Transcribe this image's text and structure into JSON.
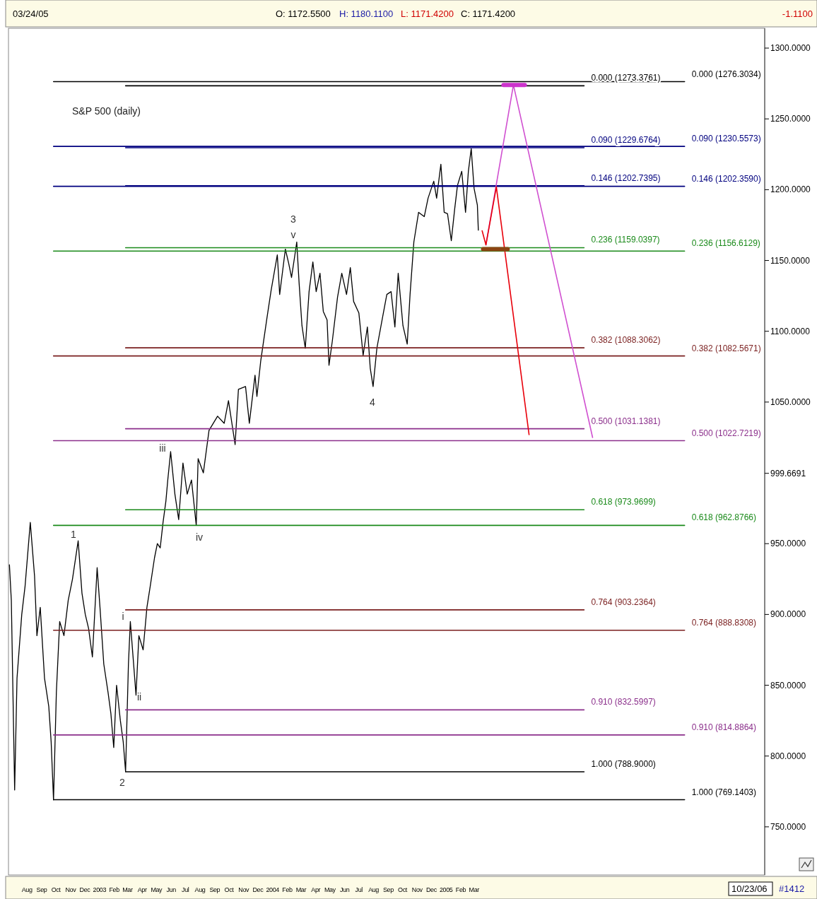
{
  "chart_data": {
    "type": "line",
    "title": "S&P 500 (daily)",
    "xlim": [
      "2002-07-07",
      "2006-11-18"
    ],
    "xticks": [
      {
        "value": "2002-08-15",
        "label": "Aug"
      },
      {
        "value": "2002-09-15",
        "label": "Sep"
      },
      {
        "value": "2002-10-15",
        "label": "Oct"
      },
      {
        "value": "2002-11-15",
        "label": "Nov"
      },
      {
        "value": "2002-12-15",
        "label": "Dec"
      },
      {
        "value": "2003-01-15",
        "label": "2003"
      },
      {
        "value": "2003-02-15",
        "label": "Feb"
      },
      {
        "value": "2003-03-15",
        "label": "Mar"
      },
      {
        "value": "2003-04-15",
        "label": "Apr"
      },
      {
        "value": "2003-05-15",
        "label": "May"
      },
      {
        "value": "2003-06-15",
        "label": "Jun"
      },
      {
        "value": "2003-07-15",
        "label": "Jul"
      },
      {
        "value": "2003-08-15",
        "label": "Aug"
      },
      {
        "value": "2003-09-15",
        "label": "Sep"
      },
      {
        "value": "2003-10-15",
        "label": "Oct"
      },
      {
        "value": "2003-11-15",
        "label": "Nov"
      },
      {
        "value": "2003-12-15",
        "label": "Dec"
      },
      {
        "value": "2004-01-15",
        "label": "2004"
      },
      {
        "value": "2004-02-15",
        "label": "Feb"
      },
      {
        "value": "2004-03-15",
        "label": "Mar"
      },
      {
        "value": "2004-04-15",
        "label": "Apr"
      },
      {
        "value": "2004-05-15",
        "label": "May"
      },
      {
        "value": "2004-06-15",
        "label": "Jun"
      },
      {
        "value": "2004-07-15",
        "label": "Jul"
      },
      {
        "value": "2004-08-15",
        "label": "Aug"
      },
      {
        "value": "2004-09-15",
        "label": "Sep"
      },
      {
        "value": "2004-10-15",
        "label": "Oct"
      },
      {
        "value": "2004-11-15",
        "label": "Nov"
      },
      {
        "value": "2004-12-15",
        "label": "Dec"
      },
      {
        "value": "2005-01-15",
        "label": "2005"
      },
      {
        "value": "2005-02-15",
        "label": "Feb"
      },
      {
        "value": "2005-03-15",
        "label": "Mar"
      }
    ],
    "ylim": [
      716,
      1314
    ],
    "yticks": [
      {
        "value": 1300,
        "label": "1300.0000"
      },
      {
        "value": 1250,
        "label": "1250.0000"
      },
      {
        "value": 1200,
        "label": "1200.0000"
      },
      {
        "value": 1150,
        "label": "1150.0000"
      },
      {
        "value": 1100,
        "label": "1100.0000"
      },
      {
        "value": 1050,
        "label": "1050.0000"
      },
      {
        "value": 999.6691,
        "label": "999.6691"
      },
      {
        "value": 950,
        "label": "950.0000"
      },
      {
        "value": 900,
        "label": "900.0000"
      },
      {
        "value": 850,
        "label": "850.0000"
      },
      {
        "value": 800,
        "label": "800.0000"
      },
      {
        "value": 750,
        "label": "750.0000"
      }
    ],
    "grid": false,
    "series": [
      {
        "color": "#000000",
        "x": [
          "2002-07-09",
          "2002-07-13",
          "2002-07-20",
          "2002-07-25",
          "2002-08-04",
          "2002-08-11",
          "2002-08-22",
          "2002-08-31",
          "2002-09-05",
          "2002-09-12",
          "2002-09-21",
          "2002-09-30",
          "2002-10-05",
          "2002-10-10",
          "2002-10-16",
          "2002-10-23",
          "2002-11-01",
          "2002-11-10",
          "2002-11-19",
          "2002-12-01",
          "2002-12-09",
          "2002-12-16",
          "2002-12-23",
          "2002-12-31",
          "2003-01-10",
          "2003-01-16",
          "2003-01-24",
          "2003-02-02",
          "2003-02-08",
          "2003-02-14",
          "2003-02-20",
          "2003-02-28",
          "2003-03-06",
          "2003-03-11",
          "2003-03-17",
          "2003-03-21",
          "2003-04-02",
          "2003-04-08",
          "2003-04-17",
          "2003-04-25",
          "2003-05-02",
          "2003-05-11",
          "2003-05-17",
          "2003-05-23",
          "2003-05-29",
          "2003-06-04",
          "2003-06-08",
          "2003-06-14",
          "2003-06-23",
          "2003-07-01",
          "2003-07-10",
          "2003-07-19",
          "2003-07-28",
          "2003-08-07",
          "2003-08-11",
          "2003-08-22",
          "2003-09-03",
          "2003-09-21",
          "2003-10-05",
          "2003-10-14",
          "2003-10-28",
          "2003-11-04",
          "2003-11-19",
          "2003-11-27",
          "2003-12-09",
          "2003-12-13",
          "2003-12-21",
          "2004-01-03",
          "2004-01-12",
          "2004-01-25",
          "2004-01-30",
          "2004-02-11",
          "2004-02-18",
          "2004-02-24",
          "2004-03-03",
          "2004-03-06",
          "2004-03-11",
          "2004-03-17",
          "2004-03-24",
          "2004-04-01",
          "2004-04-09",
          "2004-04-16",
          "2004-04-24",
          "2004-05-01",
          "2004-05-09",
          "2004-05-13",
          "2004-05-20",
          "2004-05-31",
          "2004-06-09",
          "2004-06-19",
          "2004-06-27",
          "2004-07-04",
          "2004-07-15",
          "2004-07-24",
          "2004-08-02",
          "2004-08-08",
          "2004-08-14",
          "2004-08-22",
          "2004-09-02",
          "2004-09-12",
          "2004-09-21",
          "2004-09-29",
          "2004-10-06",
          "2004-10-16",
          "2004-10-25",
          "2004-10-31",
          "2004-11-08",
          "2004-11-18",
          "2004-11-30",
          "2004-12-08",
          "2004-12-20",
          "2004-12-26",
          "2005-01-04",
          "2005-01-11",
          "2005-01-18",
          "2005-01-26",
          "2005-02-02",
          "2005-02-08",
          "2005-02-17",
          "2005-02-25",
          "2005-03-03",
          "2005-03-09",
          "2005-03-15",
          "2005-03-22",
          "2005-03-24"
        ],
        "values": [
          935,
          910,
          776,
          855,
          900,
          920,
          965,
          927,
          885,
          905,
          855,
          835,
          810,
          769,
          845,
          895,
          885,
          910,
          925,
          952,
          915,
          900,
          890,
          870,
          933,
          905,
          865,
          845,
          830,
          806,
          850,
          825,
          810,
          789,
          865,
          895,
          843,
          885,
          875,
          905,
          920,
          940,
          950,
          947,
          965,
          980,
          995,
          1015,
          985,
          967,
          1007,
          985,
          995,
          963,
          1010,
          1000,
          1030,
          1040,
          1035,
          1051,
          1020,
          1059,
          1061,
          1035,
          1069,
          1054,
          1079,
          1109,
          1129,
          1154,
          1126,
          1158,
          1148,
          1138,
          1156,
          1163,
          1134,
          1104,
          1088,
          1128,
          1149,
          1128,
          1141,
          1114,
          1108,
          1076,
          1093,
          1124,
          1141,
          1126,
          1145,
          1121,
          1113,
          1083,
          1103,
          1074,
          1061,
          1088,
          1108,
          1126,
          1128,
          1103,
          1141,
          1104,
          1091,
          1126,
          1163,
          1184,
          1181,
          1194,
          1206,
          1194,
          1218,
          1184,
          1183,
          1164,
          1186,
          1203,
          1213,
          1184,
          1213,
          1229,
          1201,
          1189,
          1171.42
        ]
      },
      {
        "name": "0.000 (1276.3034)",
        "color": "#000000",
        "x": [
          "2002-10-10",
          "2006-06-02"
        ],
        "values": [
          1276.3034,
          1276.3034
        ]
      },
      {
        "name": "0.090 (1230.5573)",
        "color": "#00007f",
        "x": [
          "2002-10-10",
          "2006-06-02"
        ],
        "values": [
          1230.5573,
          1230.5573
        ]
      },
      {
        "name": "0.146 (1202.3590)",
        "color": "#00007f",
        "x": [
          "2002-10-10",
          "2006-06-02"
        ],
        "values": [
          1202.359,
          1202.359
        ]
      },
      {
        "name": "0.236 (1156.6129)",
        "color": "#1a8a1a",
        "x": [
          "2002-10-10",
          "2006-06-02"
        ],
        "values": [
          1156.6129,
          1156.6129
        ]
      },
      {
        "name": "0.382 (1082.5671)",
        "color": "#7a1f1f",
        "x": [
          "2002-10-10",
          "2006-06-02"
        ],
        "values": [
          1082.5671,
          1082.5671
        ]
      },
      {
        "name": "0.500 (1022.7219)",
        "color": "#8b2f8b",
        "x": [
          "2002-10-10",
          "2006-06-02"
        ],
        "values": [
          1022.7219,
          1022.7219
        ]
      },
      {
        "name": "0.618 (962.8766)",
        "color": "#1a8a1a",
        "x": [
          "2002-10-10",
          "2006-06-02"
        ],
        "values": [
          962.8766,
          962.8766
        ]
      },
      {
        "name": "0.764 (888.8308)",
        "color": "#7a1f1f",
        "x": [
          "2002-10-10",
          "2006-06-02"
        ],
        "values": [
          888.8308,
          888.8308
        ]
      },
      {
        "name": "0.910 (814.8864)",
        "color": "#8b2f8b",
        "x": [
          "2002-10-10",
          "2006-06-02"
        ],
        "values": [
          814.8864,
          814.8864
        ]
      },
      {
        "name": "1.000 (769.1403)",
        "color": "#000000",
        "x": [
          "2002-10-10",
          "2006-06-02"
        ],
        "values": [
          769.1403,
          769.1403
        ]
      },
      {
        "name": "0.000 (1273.3761)",
        "color": "#000000",
        "x": [
          "2003-03-11",
          "2005-11-02"
        ],
        "values": [
          1273.3761,
          1273.3761
        ]
      },
      {
        "name": "0.090 (1229.6764)",
        "color": "#00007f",
        "x": [
          "2003-03-11",
          "2005-11-02"
        ],
        "values": [
          1229.6764,
          1229.6764
        ]
      },
      {
        "name": "0.146 (1202.7395)",
        "color": "#00007f",
        "x": [
          "2003-03-11",
          "2005-11-02"
        ],
        "values": [
          1202.7395,
          1202.7395
        ]
      },
      {
        "name": "0.236 (1159.0397)",
        "color": "#1a8a1a",
        "x": [
          "2003-03-11",
          "2005-11-02"
        ],
        "values": [
          1159.0397,
          1159.0397
        ]
      },
      {
        "name": "0.382 (1088.3062)",
        "color": "#7a1f1f",
        "x": [
          "2003-03-11",
          "2005-11-02"
        ],
        "values": [
          1088.3062,
          1088.3062
        ]
      },
      {
        "name": "0.500 (1031.1381)",
        "color": "#8b2f8b",
        "x": [
          "2003-03-11",
          "2005-11-02"
        ],
        "values": [
          1031.1381,
          1031.1381
        ]
      },
      {
        "name": "0.618 (973.9699)",
        "color": "#1a8a1a",
        "x": [
          "2003-03-11",
          "2005-11-02"
        ],
        "values": [
          973.9699,
          973.9699
        ]
      },
      {
        "name": "0.764 (903.2364)",
        "color": "#7a1f1f",
        "x": [
          "2003-03-11",
          "2005-11-02"
        ],
        "values": [
          903.2364,
          903.2364
        ]
      },
      {
        "name": "0.910 (832.5997)",
        "color": "#8b2f8b",
        "x": [
          "2003-03-11",
          "2005-11-02"
        ],
        "values": [
          832.5997,
          832.5997
        ]
      },
      {
        "name": "1.000 (788.9000)",
        "color": "#000000",
        "x": [
          "2003-03-11",
          "2005-11-02"
        ],
        "values": [
          788.9,
          788.9
        ]
      },
      {
        "color": "#d050d0",
        "x": [
          "2005-04-09",
          "2005-06-06",
          "2005-11-20"
        ],
        "values": [
          1161,
          1274,
          1025
        ]
      },
      {
        "color": "#e8000b",
        "x": [
          "2005-04-01",
          "2005-04-09",
          "2005-05-01",
          "2005-07-09"
        ],
        "values": [
          1171,
          1161,
          1202,
          1027
        ]
      },
      {
        "color": "#8b4513",
        "x": [
          "2005-04-03",
          "2005-05-25"
        ],
        "values": [
          1158,
          1158
        ]
      },
      {
        "color": "#cc33cc",
        "x": [
          "2005-05-16",
          "2005-06-30"
        ],
        "values": [
          1274,
          1274
        ]
      }
    ],
    "annotations": [
      "03/24/05",
      "O: 1172.5500",
      "H: 1180.1100",
      "L: 1171.4200",
      "C: 1171.4200",
      "-1.1100",
      "10/23/06",
      "#1412",
      "1",
      "2",
      "3",
      "v",
      "4",
      "i",
      "ii",
      "iii",
      "iv"
    ]
  }
}
